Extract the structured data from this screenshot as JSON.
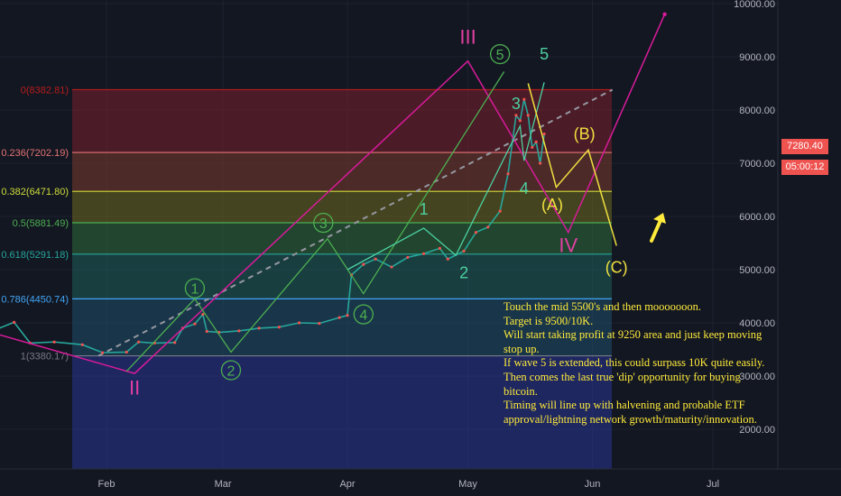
{
  "chart_data": {
    "type": "line",
    "title": "",
    "xlabel": "",
    "ylabel": "",
    "x_ticks": [
      "Feb",
      "Mar",
      "Apr",
      "May",
      "Jun",
      "Jul"
    ],
    "y_ticks": [
      "2000.00",
      "3000.00",
      "4000.00",
      "5000.00",
      "6000.00",
      "7000.00",
      "8000.00",
      "9000.00",
      "10000.00"
    ],
    "ylim": [
      1300,
      10100
    ],
    "grid": true,
    "last_price": "7280.40",
    "countdown": "05:00:12",
    "price_series": [
      {
        "x": "2019-01-02",
        "y": 3830
      },
      {
        "x": "2019-01-08",
        "y": 4010
      },
      {
        "x": "2019-01-12",
        "y": 3620
      },
      {
        "x": "2019-01-18",
        "y": 3640
      },
      {
        "x": "2019-01-25",
        "y": 3590
      },
      {
        "x": "2019-01-30",
        "y": 3440
      },
      {
        "x": "2019-02-05",
        "y": 3450
      },
      {
        "x": "2019-02-08",
        "y": 3640
      },
      {
        "x": "2019-02-12",
        "y": 3620
      },
      {
        "x": "2019-02-17",
        "y": 3630
      },
      {
        "x": "2019-02-19",
        "y": 3900
      },
      {
        "x": "2019-02-22",
        "y": 3980
      },
      {
        "x": "2019-02-24",
        "y": 4160
      },
      {
        "x": "2019-02-25",
        "y": 3840
      },
      {
        "x": "2019-02-28",
        "y": 3820
      },
      {
        "x": "2019-03-05",
        "y": 3850
      },
      {
        "x": "2019-03-10",
        "y": 3900
      },
      {
        "x": "2019-03-15",
        "y": 3920
      },
      {
        "x": "2019-03-20",
        "y": 4000
      },
      {
        "x": "2019-03-25",
        "y": 3990
      },
      {
        "x": "2019-03-30",
        "y": 4100
      },
      {
        "x": "2019-04-01",
        "y": 4140
      },
      {
        "x": "2019-04-02",
        "y": 4900
      },
      {
        "x": "2019-04-05",
        "y": 5100
      },
      {
        "x": "2019-04-08",
        "y": 5200
      },
      {
        "x": "2019-04-12",
        "y": 5050
      },
      {
        "x": "2019-04-16",
        "y": 5230
      },
      {
        "x": "2019-04-20",
        "y": 5300
      },
      {
        "x": "2019-04-24",
        "y": 5400
      },
      {
        "x": "2019-04-26",
        "y": 5200
      },
      {
        "x": "2019-04-30",
        "y": 5350
      },
      {
        "x": "2019-05-03",
        "y": 5700
      },
      {
        "x": "2019-05-06",
        "y": 5800
      },
      {
        "x": "2019-05-09",
        "y": 6100
      },
      {
        "x": "2019-05-11",
        "y": 6800
      },
      {
        "x": "2019-05-13",
        "y": 7900
      },
      {
        "x": "2019-05-14",
        "y": 7800
      },
      {
        "x": "2019-05-15",
        "y": 8200
      },
      {
        "x": "2019-05-16",
        "y": 7900
      },
      {
        "x": "2019-05-17",
        "y": 7300
      },
      {
        "x": "2019-05-18",
        "y": 7400
      },
      {
        "x": "2019-05-19",
        "y": 7000
      },
      {
        "x": "2019-05-20",
        "y": 7550
      }
    ],
    "fib_levels": [
      {
        "label": "0(8382.81)",
        "value": 8382.81,
        "color": "#b71c1c"
      },
      {
        "label": "0.236(7202.19)",
        "value": 7202.19,
        "color": "#e57373"
      },
      {
        "label": "0.382(6471.80)",
        "value": 6471.8,
        "color": "#cddc39"
      },
      {
        "label": "0.5(5881.49)",
        "value": 5881.49,
        "color": "#4caf50"
      },
      {
        "label": "0.618(5291.18)",
        "value": 5291.18,
        "color": "#26a69a"
      },
      {
        "label": "0.786(4450.74)",
        "value": 4450.74,
        "color": "#42a5f5"
      },
      {
        "label": "1(3380.17)",
        "value": 3380.17,
        "color": "#787b86"
      }
    ],
    "fib_band_colors": [
      "#7a1f2b",
      "#7b3b2e",
      "#6f6a1f",
      "#2e6b3a",
      "#1f5f5a",
      "#1f4f6a",
      "#3f4150",
      "#283593"
    ],
    "trend_line": [
      {
        "x": "2019-01-29",
        "y": 3380
      },
      {
        "x": "2019-06-06",
        "y": 8382
      }
    ],
    "wave_pink": [
      {
        "x": "2018-12-25",
        "y": 4000
      },
      {
        "x": "2019-02-07",
        "y": 3050
      },
      {
        "x": "2019-05-01",
        "y": 8920
      },
      {
        "x": "2019-05-26",
        "y": 5700
      },
      {
        "x": "2019-06-19",
        "y": 9800
      }
    ],
    "wave_green_1": [
      {
        "x": "2019-02-05",
        "y": 3090
      },
      {
        "x": "2019-02-22",
        "y": 4450
      },
      {
        "x": "2019-03-03",
        "y": 3450
      },
      {
        "x": "2019-03-27",
        "y": 5580
      },
      {
        "x": "2019-04-05",
        "y": 4550
      },
      {
        "x": "2019-05-10",
        "y": 8720
      }
    ],
    "wave_green_2": [
      {
        "x": "2019-04-01",
        "y": 5000
      },
      {
        "x": "2019-04-20",
        "y": 5780
      },
      {
        "x": "2019-04-28",
        "y": 5270
      },
      {
        "x": "2019-05-14",
        "y": 7700
      },
      {
        "x": "2019-05-15",
        "y": 7050
      },
      {
        "x": "2019-05-20",
        "y": 8520
      }
    ],
    "wave_yellow": [
      {
        "x": "2019-05-16",
        "y": 8500
      },
      {
        "x": "2019-05-23",
        "y": 6550
      },
      {
        "x": "2019-05-31",
        "y": 7250
      },
      {
        "x": "2019-06-07",
        "y": 5450
      }
    ],
    "labels": [
      {
        "text": "III",
        "x": "2019-05-01",
        "y": 9250,
        "color": "#e040a0",
        "size": 22
      },
      {
        "text": "II",
        "x": "2019-02-07",
        "y": 2650,
        "color": "#e040a0",
        "size": 22
      },
      {
        "text": "IV",
        "x": "2019-05-26",
        "y": 5330,
        "color": "#e040a0",
        "size": 22
      },
      {
        "text": "5",
        "x": "2019-05-20",
        "y": 8950,
        "color": "#4dd0a0",
        "size": 18
      },
      {
        "text": "3",
        "x": "2019-05-13",
        "y": 8020,
        "color": "#4dd0a0",
        "size": 18
      },
      {
        "text": "4",
        "x": "2019-05-15",
        "y": 6420,
        "color": "#4dd0a0",
        "size": 18
      },
      {
        "text": "1",
        "x": "2019-04-20",
        "y": 6030,
        "color": "#4dd0a0",
        "size": 18
      },
      {
        "text": "2",
        "x": "2019-04-30",
        "y": 4840,
        "color": "#4dd0a0",
        "size": 18
      },
      {
        "text": "(A)",
        "x": "2019-05-22",
        "y": 6120,
        "color": "#f0e040",
        "size": 18
      },
      {
        "text": "(B)",
        "x": "2019-05-30",
        "y": 7450,
        "color": "#f0e040",
        "size": 18
      },
      {
        "text": "(C)",
        "x": "2019-06-07",
        "y": 4940,
        "color": "#f0e040",
        "size": 18
      }
    ],
    "circled_labels": [
      {
        "text": "1",
        "x": "2019-02-22",
        "y": 4650
      },
      {
        "text": "2",
        "x": "2019-03-03",
        "y": 3110
      },
      {
        "text": "3",
        "x": "2019-03-26",
        "y": 5880
      },
      {
        "text": "4",
        "x": "2019-04-05",
        "y": 4160
      },
      {
        "text": "5",
        "x": "2019-05-09",
        "y": 9050
      }
    ],
    "note": [
      "Touch the mid 5500's and then mooooooon.",
      "Target is 9500/10K.",
      "Will start taking profit at 9250 area and just keep moving stop up.",
      "If wave 5 is extended, this could surpass 10K quite easily. Then comes the last true 'dip' opportunity for buying bitcoin.",
      "Timing will line up with halvening and probable ETF approval/lightning network growth/maturity/innovation."
    ]
  }
}
